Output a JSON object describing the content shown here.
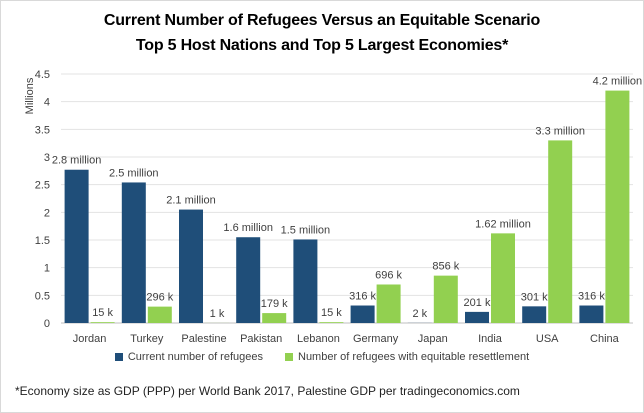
{
  "chart_data": {
    "type": "bar",
    "title": "Current Number of Refugees Versus an Equitable Scenario",
    "subtitle": "Top 5 Host Nations and Top 5 Largest Economies*",
    "ylabel": "Millions",
    "xlabel": "",
    "ylim": [
      0,
      4.5
    ],
    "yticks": [
      "0",
      "0.5",
      "1",
      "1.5",
      "2",
      "2.5",
      "3",
      "3.5",
      "4",
      "4.5"
    ],
    "grid": true,
    "legend_position": "bottom",
    "categories": [
      "Jordan",
      "Turkey",
      "Palestine",
      "Pakistan",
      "Lebanon",
      "Germany",
      "Japan",
      "India",
      "USA",
      "China"
    ],
    "series": [
      {
        "name": "Current number of refugees",
        "color": "#1f4e79",
        "values": [
          2.77,
          2.54,
          2.05,
          1.55,
          1.51,
          0.316,
          0.002,
          0.201,
          0.301,
          0.316
        ],
        "labels": [
          "2.8 million",
          "2.5 million",
          "2.1 million",
          "1.6 million",
          "1.5 million",
          "316 k",
          "2 k",
          "201 k",
          "301 k",
          "316 k"
        ]
      },
      {
        "name": "Number of refugees with equitable resettlement",
        "color": "#92d050",
        "values": [
          0.015,
          0.296,
          0.001,
          0.179,
          0.015,
          0.696,
          0.856,
          1.62,
          3.3,
          4.2
        ],
        "labels": [
          "15 k",
          "296 k",
          "1 k",
          "179 k",
          "15 k",
          "696 k",
          "856 k",
          "1.62 million",
          "3.3 million",
          "4.2 million"
        ]
      }
    ]
  },
  "footnote": "*Economy  size as GDP (PPP) per World Bank 2017, Palestine GDP per tradingeconomics.com"
}
